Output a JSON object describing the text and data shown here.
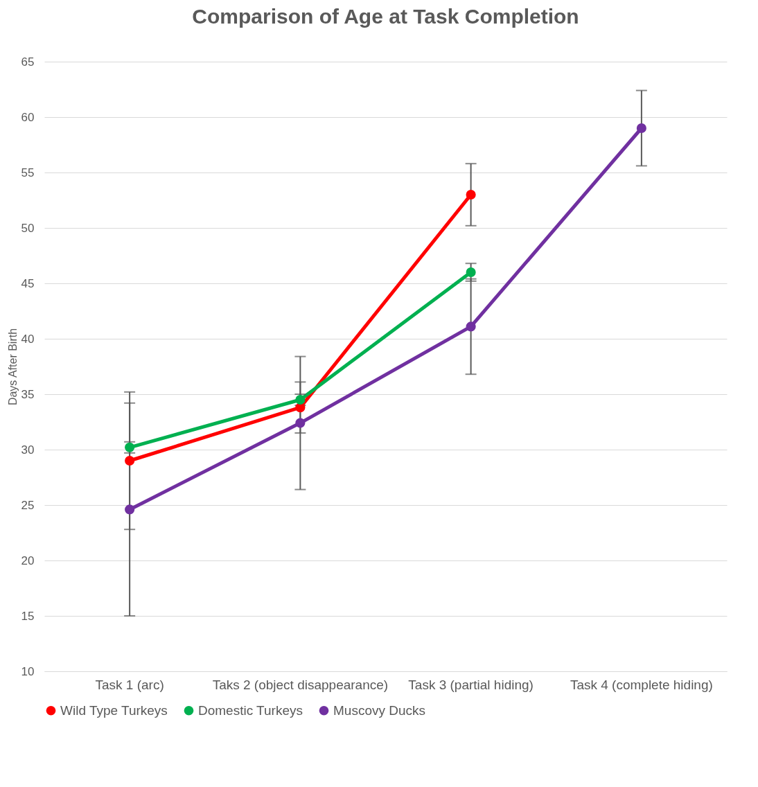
{
  "chart_data": {
    "type": "line",
    "title": "Comparison of Age at Task Completion",
    "ylabel": "Days After Birth",
    "categories": [
      "Task 1 (arc)",
      "Taks 2 (object disappearance)",
      "Task 3 (partial hiding)",
      "Task 4 (complete hiding)"
    ],
    "series": [
      {
        "name": "Wild Type Turkeys",
        "color": "#ff0000",
        "values": [
          29.0,
          33.8,
          53.0,
          null
        ],
        "errors": [
          6.2,
          2.3,
          2.8,
          null
        ]
      },
      {
        "name": "Domestic Turkeys",
        "color": "#00b050",
        "values": [
          30.2,
          34.5,
          46.0,
          null
        ],
        "errors": [
          0.5,
          0.5,
          0.8,
          null
        ]
      },
      {
        "name": "Muscovy Ducks",
        "color": "#7030a0",
        "values": [
          24.6,
          32.4,
          41.1,
          59.0
        ],
        "errors": [
          9.6,
          6.0,
          4.3,
          3.4
        ]
      }
    ],
    "ylim": [
      10,
      65
    ],
    "yticks": [
      10,
      15,
      20,
      25,
      30,
      35,
      40,
      45,
      50,
      55,
      60,
      65
    ],
    "grid": "y",
    "legend": "bottom",
    "marker": "circle",
    "line_style": "solid"
  }
}
